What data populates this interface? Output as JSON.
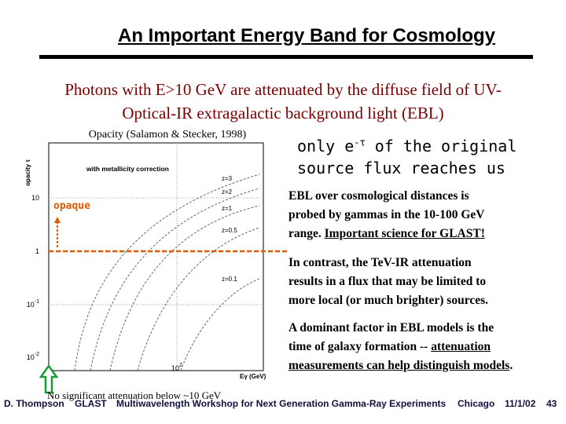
{
  "header": {
    "title": "An Important Energy Band for Cosmology"
  },
  "subtitle": {
    "lines": [
      "Photons with E>10 GeV are attenuated by the diffuse field of UV-",
      "Optical-IR extragalactic background light (EBL)"
    ]
  },
  "figure": {
    "caption": "Opacity (Salamon & Stecker, 1998)",
    "y_axis_label": "opacity τ",
    "x_axis_label": "Eγ (GeV)",
    "inset": "with metallicity correction",
    "y_tick_labels": [
      {
        "base": "10"
      },
      {
        "base": "1"
      },
      {
        "base": "10",
        "exp": "-1"
      },
      {
        "base": "10",
        "exp": "-2"
      }
    ],
    "x_tick_labels": [
      {
        "base": "10",
        "exp": "2"
      }
    ],
    "curve_labels": [
      "z=3",
      "z=2",
      "z=1",
      "z=0.5",
      "z=0.1"
    ],
    "opaque_label": "opaque",
    "bottom_note": "No significant attenuation below ~10 GeV"
  },
  "callout": {
    "line1": {
      "before": "only e",
      "sup": "-τ",
      "after": " of the original"
    },
    "line2": "source flux reaches us"
  },
  "paragraphs": [
    [
      [
        {
          "text": "EBL over cosmological distances is"
        }
      ],
      [
        {
          "text": "probed by gammas in the 10-100 GeV"
        }
      ],
      [
        {
          "text": "range.  "
        },
        {
          "text": "Important science for GLAST!",
          "underline": true
        }
      ]
    ],
    [
      [
        {
          "text": "In contrast, the TeV-IR attenuation"
        }
      ],
      [
        {
          "text": "results in a flux that may be limited to"
        }
      ],
      [
        {
          "text": "more local (or much brighter) sources."
        }
      ]
    ],
    [
      [
        {
          "text": "A dominant factor in EBL models is the"
        }
      ],
      [
        {
          "text": "time of galaxy formation -- "
        },
        {
          "text": "attenuation",
          "underline": true
        }
      ],
      [
        {
          "text": "measurements can help distinguish models",
          "underline": true
        },
        {
          "text": "."
        }
      ]
    ]
  ],
  "footer": {
    "author": "D. Thompson",
    "project": "GLAST",
    "event": "Multiwavelength Workshop for Next Generation Gamma-Ray Experiments",
    "place": "Chicago",
    "date": "11/1/02",
    "page": "43"
  }
}
